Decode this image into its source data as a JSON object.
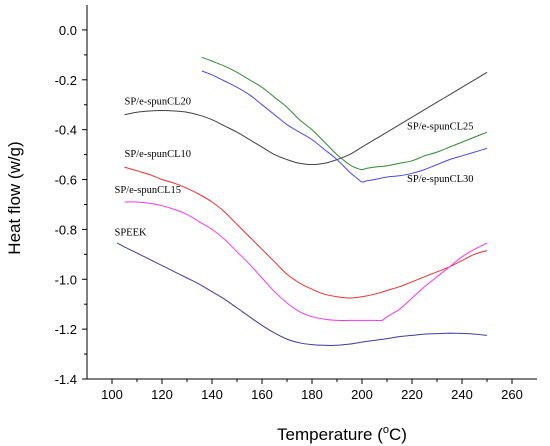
{
  "chart_data": {
    "type": "line",
    "xlabel": "Temperature (",
    "xlabel_unit_deg": "o",
    "xlabel_unit": "C)",
    "ylabel": "Heat flow (w/g)",
    "xlim": [
      90,
      270
    ],
    "ylim": [
      -1.4,
      0.1
    ],
    "x_ticks": [
      100,
      120,
      140,
      160,
      180,
      200,
      220,
      240,
      260
    ],
    "x_tick_labels": [
      "100",
      "120",
      "140",
      "160",
      "180",
      "200",
      "220",
      "240",
      "260"
    ],
    "y_ticks": [
      0.0,
      -0.2,
      -0.4,
      -0.6,
      -0.8,
      -1.0,
      -1.2,
      -1.4
    ],
    "y_tick_labels": [
      "0.0",
      "-0.2",
      "-0.4",
      "-0.6",
      "-0.8",
      "-1.0",
      "-1.2",
      "-1.4"
    ],
    "grid": false,
    "series": [
      {
        "name": "SP/e-spunCL20",
        "color": "#404040",
        "x": [
          105,
          110,
          115,
          120,
          125,
          130,
          135,
          140,
          145,
          150,
          155,
          160,
          165,
          170,
          175,
          180,
          185,
          190,
          195,
          200,
          205,
          210,
          215,
          220,
          225,
          230,
          235,
          240,
          245,
          250
        ],
        "y": [
          -0.34,
          -0.33,
          -0.325,
          -0.323,
          -0.325,
          -0.33,
          -0.342,
          -0.36,
          -0.385,
          -0.41,
          -0.44,
          -0.47,
          -0.5,
          -0.52,
          -0.535,
          -0.54,
          -0.535,
          -0.52,
          -0.5,
          -0.47,
          -0.44,
          -0.41,
          -0.38,
          -0.35,
          -0.32,
          -0.29,
          -0.26,
          -0.23,
          -0.2,
          -0.17
        ]
      },
      {
        "name": "SP/e-spunCL25",
        "color": "#2e8b2e",
        "x": [
          136,
          140,
          145,
          150,
          155,
          160,
          165,
          170,
          175,
          180,
          185,
          190,
          195,
          198,
          200,
          202,
          205,
          210,
          215,
          220,
          225,
          230,
          235,
          240,
          245,
          250
        ],
        "y": [
          -0.11,
          -0.125,
          -0.145,
          -0.17,
          -0.2,
          -0.23,
          -0.27,
          -0.31,
          -0.36,
          -0.4,
          -0.45,
          -0.5,
          -0.54,
          -0.555,
          -0.56,
          -0.555,
          -0.55,
          -0.545,
          -0.535,
          -0.525,
          -0.505,
          -0.49,
          -0.47,
          -0.45,
          -0.43,
          -0.41
        ]
      },
      {
        "name": "SP/e-spunCL30",
        "color": "#4a4aee",
        "x": [
          136,
          140,
          145,
          150,
          155,
          160,
          165,
          170,
          175,
          180,
          185,
          190,
          195,
          198,
          200,
          202,
          205,
          210,
          215,
          220,
          225,
          230,
          235,
          240,
          245,
          250
        ],
        "y": [
          -0.165,
          -0.18,
          -0.205,
          -0.23,
          -0.26,
          -0.3,
          -0.34,
          -0.38,
          -0.41,
          -0.44,
          -0.48,
          -0.52,
          -0.57,
          -0.595,
          -0.61,
          -0.605,
          -0.6,
          -0.59,
          -0.585,
          -0.575,
          -0.56,
          -0.54,
          -0.52,
          -0.505,
          -0.49,
          -0.475
        ]
      },
      {
        "name": "SP/e-spunCL10",
        "color": "#e83030",
        "x": [
          105,
          110,
          115,
          120,
          125,
          130,
          135,
          140,
          145,
          150,
          155,
          160,
          165,
          170,
          175,
          180,
          185,
          190,
          195,
          200,
          205,
          210,
          215,
          220,
          225,
          230,
          235,
          240,
          245,
          250
        ],
        "y": [
          -0.55,
          -0.565,
          -0.58,
          -0.6,
          -0.615,
          -0.635,
          -0.66,
          -0.69,
          -0.73,
          -0.78,
          -0.83,
          -0.88,
          -0.93,
          -0.98,
          -1.015,
          -1.04,
          -1.06,
          -1.07,
          -1.075,
          -1.07,
          -1.06,
          -1.045,
          -1.03,
          -1.01,
          -0.99,
          -0.97,
          -0.95,
          -0.925,
          -0.9,
          -0.885
        ]
      },
      {
        "name": "SP/e-spunCL15",
        "color": "#ee38ee",
        "x": [
          105,
          110,
          115,
          120,
          125,
          130,
          135,
          140,
          145,
          150,
          155,
          160,
          165,
          170,
          175,
          180,
          185,
          190,
          195,
          200,
          205,
          208,
          210,
          215,
          220,
          225,
          230,
          235,
          240,
          245,
          250
        ],
        "y": [
          -0.69,
          -0.69,
          -0.695,
          -0.705,
          -0.72,
          -0.74,
          -0.77,
          -0.8,
          -0.84,
          -0.89,
          -0.94,
          -0.995,
          -1.05,
          -1.095,
          -1.13,
          -1.15,
          -1.16,
          -1.165,
          -1.165,
          -1.165,
          -1.165,
          -1.165,
          -1.15,
          -1.12,
          -1.075,
          -1.03,
          -0.99,
          -0.95,
          -0.91,
          -0.88,
          -0.855
        ]
      },
      {
        "name": "SPEEK",
        "color": "#3a3a9a",
        "x": [
          102,
          105,
          110,
          115,
          120,
          125,
          130,
          135,
          140,
          145,
          150,
          155,
          160,
          165,
          170,
          175,
          180,
          185,
          190,
          195,
          200,
          205,
          210,
          215,
          220,
          225,
          230,
          235,
          240,
          245,
          250
        ],
        "y": [
          -0.855,
          -0.87,
          -0.895,
          -0.92,
          -0.945,
          -0.97,
          -0.995,
          -1.02,
          -1.05,
          -1.08,
          -1.115,
          -1.15,
          -1.185,
          -1.215,
          -1.24,
          -1.255,
          -1.262,
          -1.265,
          -1.265,
          -1.26,
          -1.252,
          -1.245,
          -1.238,
          -1.23,
          -1.225,
          -1.22,
          -1.218,
          -1.216,
          -1.217,
          -1.22,
          -1.225
        ]
      }
    ],
    "series_labels": [
      {
        "series": "SP/e-spunCL20",
        "text": "SP/e-spunCL20",
        "at_x": 105,
        "at_y": -0.3
      },
      {
        "series": "SP/e-spunCL25",
        "text": "SP/e-spunCL25",
        "at_x": 218,
        "at_y": -0.4
      },
      {
        "series": "SP/e-spunCL30",
        "text": "SP/e-spunCL30",
        "at_x": 218,
        "at_y": -0.61
      },
      {
        "series": "SP/e-spunCL10",
        "text": "SP/e-spunCL10",
        "at_x": 105,
        "at_y": -0.51
      },
      {
        "series": "SP/e-spunCL15",
        "text": "SP/e-spunCL15",
        "at_x": 101,
        "at_y": -0.655
      },
      {
        "series": "SPEEK",
        "text": "SPEEK",
        "at_x": 101,
        "at_y": -0.825
      }
    ]
  }
}
